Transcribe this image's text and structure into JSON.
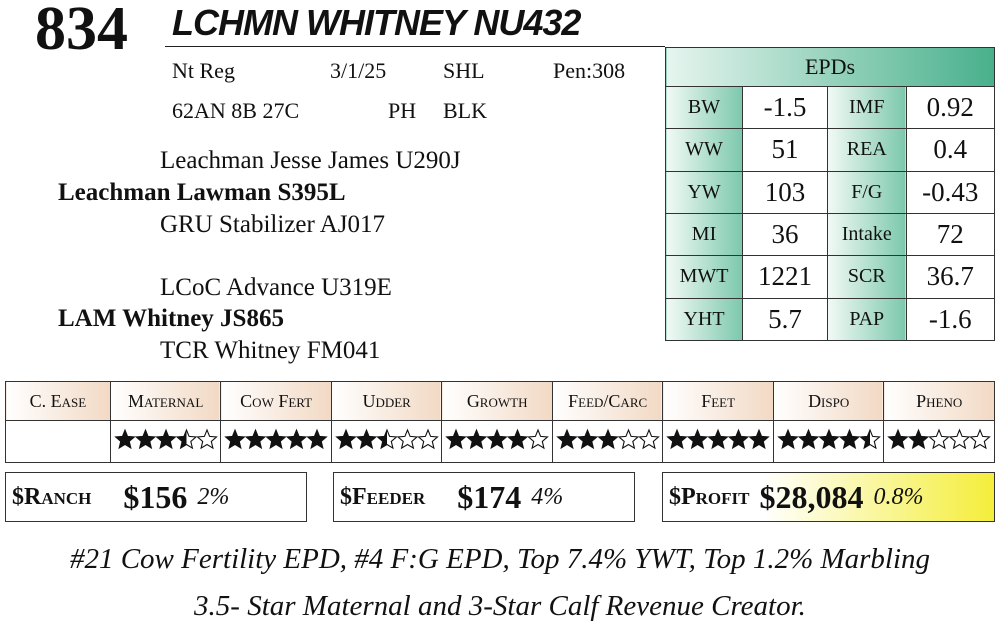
{
  "header": {
    "lot": "834",
    "name": "LCHMN WHITNEY NU432",
    "info": [
      [
        "Nt Reg",
        "3/1/25",
        "SHL",
        "Pen:308"
      ],
      [
        "62AN 8B 27C",
        "PH",
        "BLK"
      ]
    ]
  },
  "pedigree": {
    "sire_sire": "Leachman Jesse James U290J",
    "sire": "Leachman Lawman S395L",
    "sire_dam": "GRU Stabilizer AJ017",
    "dam_sire": "LCoC Advance U319E",
    "dam": "LAM Whitney JS865",
    "dam_dam": "TCR Whitney FM041"
  },
  "epds": {
    "title": "EPDs",
    "rows": [
      [
        "BW",
        "-1.5",
        "IMF",
        "0.92"
      ],
      [
        "WW",
        "51",
        "REA",
        "0.4"
      ],
      [
        "YW",
        "103",
        "F/G",
        "-0.43"
      ],
      [
        "MI",
        "36",
        "Intake",
        "72"
      ],
      [
        "MWT",
        "1221",
        "SCR",
        "36.7"
      ],
      [
        "YHT",
        "5.7",
        "PAP",
        "-1.6"
      ]
    ]
  },
  "ratings": {
    "categories": [
      "C. Ease",
      "Maternal",
      "Cow Fert",
      "Udder",
      "Growth",
      "Feed/Carc",
      "Feet",
      "Dispo",
      "Pheno"
    ],
    "stars": [
      null,
      3.5,
      5,
      2.5,
      4,
      3,
      5,
      4.5,
      2
    ]
  },
  "indexes": [
    {
      "label": "$Ranch",
      "value": "$156",
      "pct": "2%"
    },
    {
      "label": "$Feeder",
      "value": "$174",
      "pct": "4%"
    },
    {
      "label": "$Profit",
      "value": "$28,084",
      "pct": "0.8%"
    }
  ],
  "notes": [
    "#21 Cow Fertility EPD, #4 F:G EPD, Top 7.4% YWT, Top 1.2% Marbling",
    "3.5- Star Maternal and 3-Star Calf Revenue Creator."
  ]
}
